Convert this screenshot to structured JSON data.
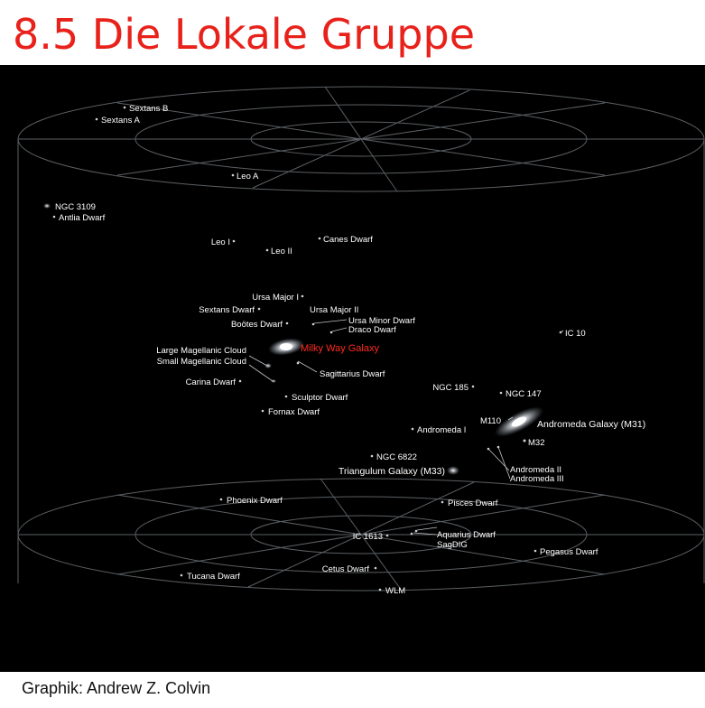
{
  "title": "8.5 Die Lokale Gruppe",
  "credit": "Graphik: Andrew Z. Colvin",
  "labels": {
    "sextans_b": "Sextans B",
    "sextans_a": "Sextans A",
    "leo_a": "Leo A",
    "ngc_3109": "NGC 3109",
    "antlia_dwarf": "Antlia Dwarf",
    "leo_i": "Leo I",
    "leo_ii": "Leo II",
    "canes_dwarf": "Canes Dwarf",
    "ursa_major_i": "Ursa Major I",
    "sextans_dwarf": "Sextans Dwarf",
    "ursa_major_ii": "Ursa Major II",
    "bootes_dwarf": "Boötes Dwarf",
    "ursa_minor_dwarf": "Ursa Minor Dwarf",
    "draco_dwarf": "Draco Dwarf",
    "milky_way": "Milky Way Galaxy",
    "lmc": "Large Magellanic Cloud",
    "smc": "Small Magellanic Cloud",
    "sagittarius_dwarf": "Sagittarius Dwarf",
    "carina_dwarf": "Carina Dwarf",
    "sculptor_dwarf": "Sculptor Dwarf",
    "fornax_dwarf": "Fornax Dwarf",
    "ic_10": "IC 10",
    "ngc_185": "NGC 185",
    "ngc_147": "NGC 147",
    "m110": "M110",
    "andromeda_galaxy": "Andromeda Galaxy (M31)",
    "m32": "M32",
    "andromeda_i": "Andromeda I",
    "andromeda_ii": "Andromeda II",
    "andromeda_iii": "Andromeda III",
    "ngc_6822": "NGC 6822",
    "triangulum": "Triangulum Galaxy (M33)",
    "phoenix_dwarf": "Phoenix Dwarf",
    "pisces_dwarf": "Pisces Dwarf",
    "ic_1613": "IC 1613",
    "aquarius_dwarf": "Aquarius Dwarf",
    "sagdig": "SagDIG",
    "pegasus_dwarf": "Pegasus Dwarf",
    "tucana_dwarf": "Tucana Dwarf",
    "cetus_dwarf": "Cetus Dwarf",
    "wlm": "WLM"
  },
  "colors": {
    "title": "#e8211b",
    "background": "#000000",
    "grid": "#5b5f63",
    "label": "#ffffff",
    "milky_way_label": "#ff2a1f"
  }
}
